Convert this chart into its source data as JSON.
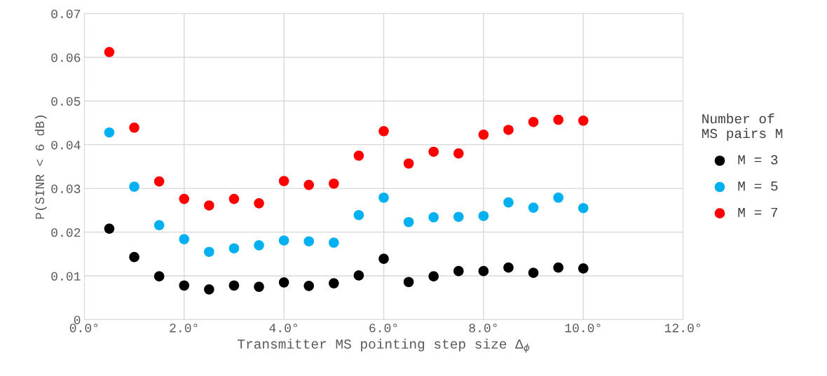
{
  "chart_data": {
    "type": "scatter",
    "xlabel": "Transmitter MS pointing step size Δ$_{ϕ}$",
    "ylabel": "P(SINR < 6 dB)",
    "legend_title": "Number of\nMS pairs M",
    "x": [
      0.5,
      1.0,
      1.5,
      2.0,
      2.5,
      3.0,
      3.5,
      4.0,
      4.5,
      5.0,
      5.5,
      6.0,
      6.5,
      7.0,
      7.5,
      8.0,
      8.5,
      9.0,
      9.5,
      10.0
    ],
    "series": [
      {
        "name": "M = 3",
        "color": "#000000",
        "values": [
          0.0208,
          0.0143,
          0.0099,
          0.0078,
          0.0069,
          0.0078,
          0.0075,
          0.0085,
          0.0077,
          0.0083,
          0.0101,
          0.0139,
          0.0086,
          0.0099,
          0.0111,
          0.0111,
          0.0119,
          0.0107,
          0.0119,
          0.0117
        ]
      },
      {
        "name": "M = 5",
        "color": "#00b0f0",
        "values": [
          0.0428,
          0.0304,
          0.0216,
          0.0184,
          0.0155,
          0.0163,
          0.017,
          0.0181,
          0.0179,
          0.0176,
          0.0239,
          0.0279,
          0.0223,
          0.0234,
          0.0235,
          0.0237,
          0.0268,
          0.0256,
          0.0279,
          0.0255
        ]
      },
      {
        "name": "M = 7",
        "color": "#ff0000",
        "values": [
          0.0612,
          0.0439,
          0.0316,
          0.0276,
          0.0261,
          0.0276,
          0.0266,
          0.0317,
          0.0308,
          0.0311,
          0.0375,
          0.0431,
          0.0357,
          0.0384,
          0.038,
          0.0423,
          0.0434,
          0.0452,
          0.0457,
          0.0455
        ]
      }
    ],
    "xlim": [
      0,
      12
    ],
    "xticks": [
      {
        "value": 0,
        "label": "0.0°"
      },
      {
        "value": 2,
        "label": "2.0°"
      },
      {
        "value": 4,
        "label": "4.0°"
      },
      {
        "value": 6,
        "label": "6.0°"
      },
      {
        "value": 8,
        "label": "8.0°"
      },
      {
        "value": 10,
        "label": "10.0°"
      },
      {
        "value": 12,
        "label": "12.0°"
      }
    ],
    "ylim": [
      0,
      0.07
    ],
    "yticks": [
      0,
      0.01,
      0.02,
      0.03,
      0.04,
      0.05,
      0.06,
      0.07
    ],
    "grid": true,
    "legend": "right",
    "marker": "circle"
  }
}
